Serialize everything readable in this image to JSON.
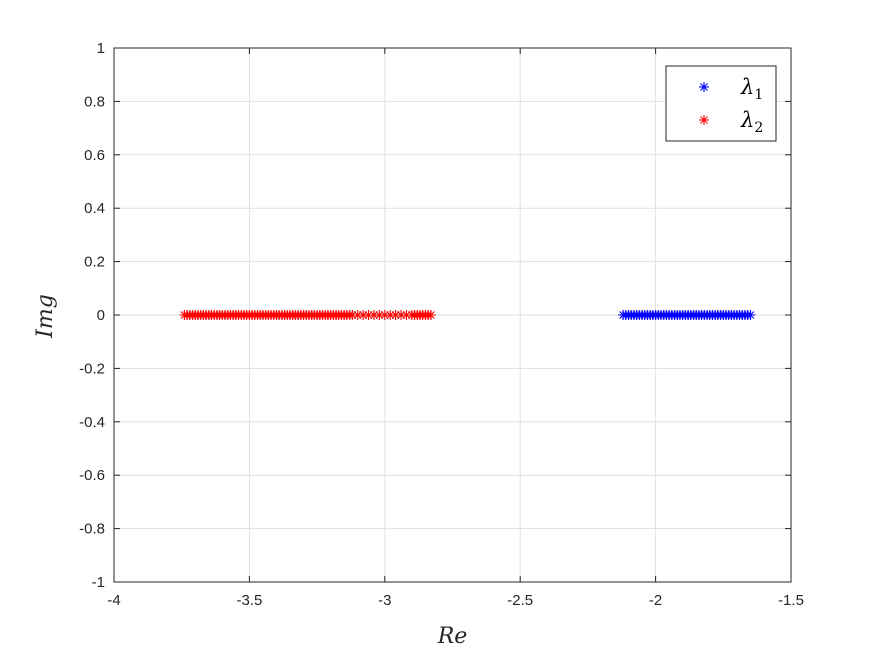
{
  "chart_data": {
    "type": "scatter",
    "xlabel": "Re",
    "ylabel": "Img",
    "xlim": [
      -4,
      -1.5
    ],
    "ylim": [
      -1,
      1
    ],
    "grid": true,
    "legend_placement": "top-right",
    "x_ticks": [
      "-4",
      "-3.5",
      "-3",
      "-2.5",
      "-2",
      "-1.5"
    ],
    "y_ticks": [
      "1",
      "0.8",
      "0.6",
      "0.4",
      "0.2",
      "0",
      "-0.2",
      "-0.4",
      "-0.6",
      "-0.8",
      "-1"
    ],
    "series": [
      {
        "name_base": "λ",
        "name_sub": "1",
        "color": "#0000ff",
        "marker": "asterisk",
        "x": [
          -2.12,
          -2.11,
          -2.1,
          -2.09,
          -2.08,
          -2.07,
          -2.06,
          -2.05,
          -2.04,
          -2.03,
          -2.02,
          -2.01,
          -2.0,
          -1.99,
          -1.98,
          -1.97,
          -1.96,
          -1.95,
          -1.94,
          -1.93,
          -1.92,
          -1.91,
          -1.9,
          -1.89,
          -1.88,
          -1.87,
          -1.86,
          -1.85,
          -1.84,
          -1.83,
          -1.82,
          -1.81,
          -1.8,
          -1.79,
          -1.78,
          -1.77,
          -1.76,
          -1.75,
          -1.74,
          -1.73,
          -1.72,
          -1.71,
          -1.7,
          -1.69,
          -1.68,
          -1.67,
          -1.66,
          -1.65
        ],
        "y": [
          0,
          0,
          0,
          0,
          0,
          0,
          0,
          0,
          0,
          0,
          0,
          0,
          0,
          0,
          0,
          0,
          0,
          0,
          0,
          0,
          0,
          0,
          0,
          0,
          0,
          0,
          0,
          0,
          0,
          0,
          0,
          0,
          0,
          0,
          0,
          0,
          0,
          0,
          0,
          0,
          0,
          0,
          0,
          0,
          0,
          0,
          0,
          0
        ]
      },
      {
        "name_base": "λ",
        "name_sub": "2",
        "color": "#ff0000",
        "marker": "asterisk",
        "x": [
          -3.74,
          -3.73,
          -3.72,
          -3.71,
          -3.7,
          -3.69,
          -3.68,
          -3.67,
          -3.66,
          -3.65,
          -3.64,
          -3.63,
          -3.62,
          -3.61,
          -3.6,
          -3.59,
          -3.58,
          -3.57,
          -3.56,
          -3.55,
          -3.54,
          -3.53,
          -3.52,
          -3.51,
          -3.5,
          -3.49,
          -3.48,
          -3.47,
          -3.46,
          -3.45,
          -3.44,
          -3.43,
          -3.42,
          -3.41,
          -3.4,
          -3.39,
          -3.38,
          -3.37,
          -3.36,
          -3.35,
          -3.34,
          -3.33,
          -3.32,
          -3.31,
          -3.3,
          -3.29,
          -3.28,
          -3.27,
          -3.26,
          -3.25,
          -3.24,
          -3.23,
          -3.22,
          -3.21,
          -3.2,
          -3.19,
          -3.18,
          -3.17,
          -3.16,
          -3.15,
          -3.14,
          -3.13,
          -3.12,
          -3.1,
          -3.08,
          -3.06,
          -3.04,
          -3.02,
          -3.0,
          -2.98,
          -2.96,
          -2.94,
          -2.92,
          -2.9,
          -2.89,
          -2.88,
          -2.87,
          -2.86,
          -2.85,
          -2.84,
          -2.83
        ],
        "y": [
          0,
          0,
          0,
          0,
          0,
          0,
          0,
          0,
          0,
          0,
          0,
          0,
          0,
          0,
          0,
          0,
          0,
          0,
          0,
          0,
          0,
          0,
          0,
          0,
          0,
          0,
          0,
          0,
          0,
          0,
          0,
          0,
          0,
          0,
          0,
          0,
          0,
          0,
          0,
          0,
          0,
          0,
          0,
          0,
          0,
          0,
          0,
          0,
          0,
          0,
          0,
          0,
          0,
          0,
          0,
          0,
          0,
          0,
          0,
          0,
          0,
          0,
          0,
          0,
          0,
          0,
          0,
          0,
          0,
          0,
          0,
          0,
          0,
          0,
          0,
          0,
          0,
          0,
          0,
          0,
          0
        ]
      }
    ]
  }
}
